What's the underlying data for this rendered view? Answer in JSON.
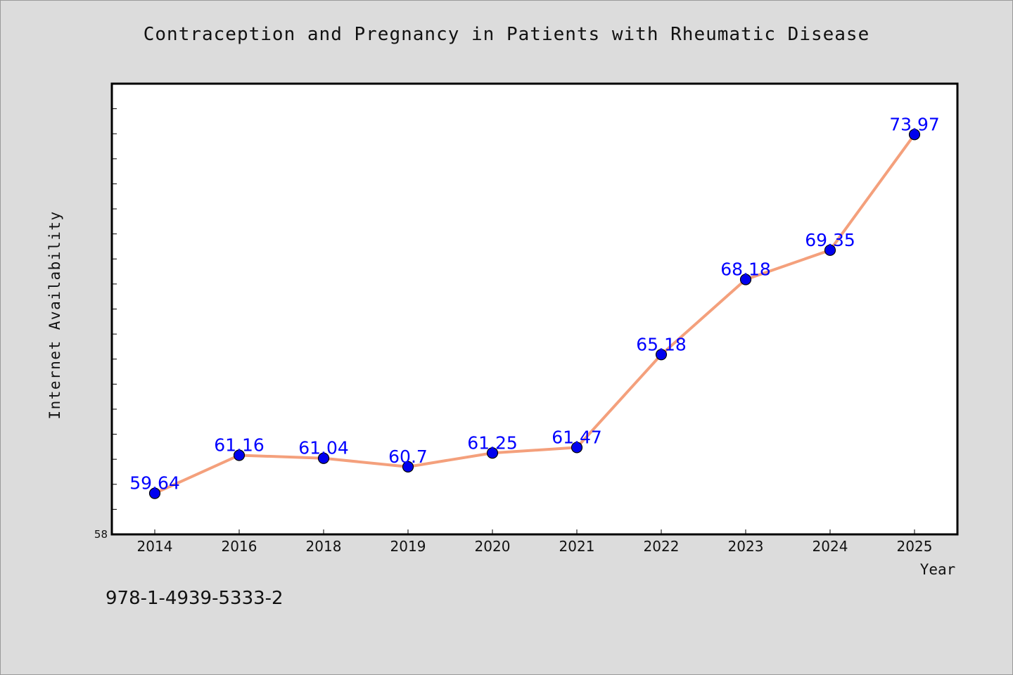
{
  "chart_data": {
    "type": "line",
    "title": "Contraception and Pregnancy in Patients with Rheumatic Disease",
    "xlabel": "Year",
    "ylabel": "Internet Availability",
    "categories": [
      "2014",
      "2016",
      "2018",
      "2019",
      "2020",
      "2021",
      "2022",
      "2023",
      "2024",
      "2025"
    ],
    "series": [
      {
        "values": [
          59.64,
          61.16,
          61.04,
          60.7,
          61.25,
          61.47,
          65.18,
          68.18,
          69.35,
          73.97
        ],
        "labels": [
          "59.64",
          "61.16",
          "61.04",
          "60.7",
          "61.25",
          "61.47",
          "65.18",
          "68.18",
          "69.35",
          "73.97"
        ]
      }
    ],
    "ylim": [
      58,
      76
    ],
    "y_ticks_labeled": [
      "58"
    ],
    "grid": false,
    "legend": "none",
    "colors": {
      "line": "#f4a07c",
      "marker": "#0000ee",
      "marker_edge": "#000000",
      "data_label": "#0000ff",
      "plot_bg": "#ffffff",
      "page_bg": "#dcdcdc"
    }
  },
  "footer": {
    "code": "978-1-4939-5333-2"
  }
}
